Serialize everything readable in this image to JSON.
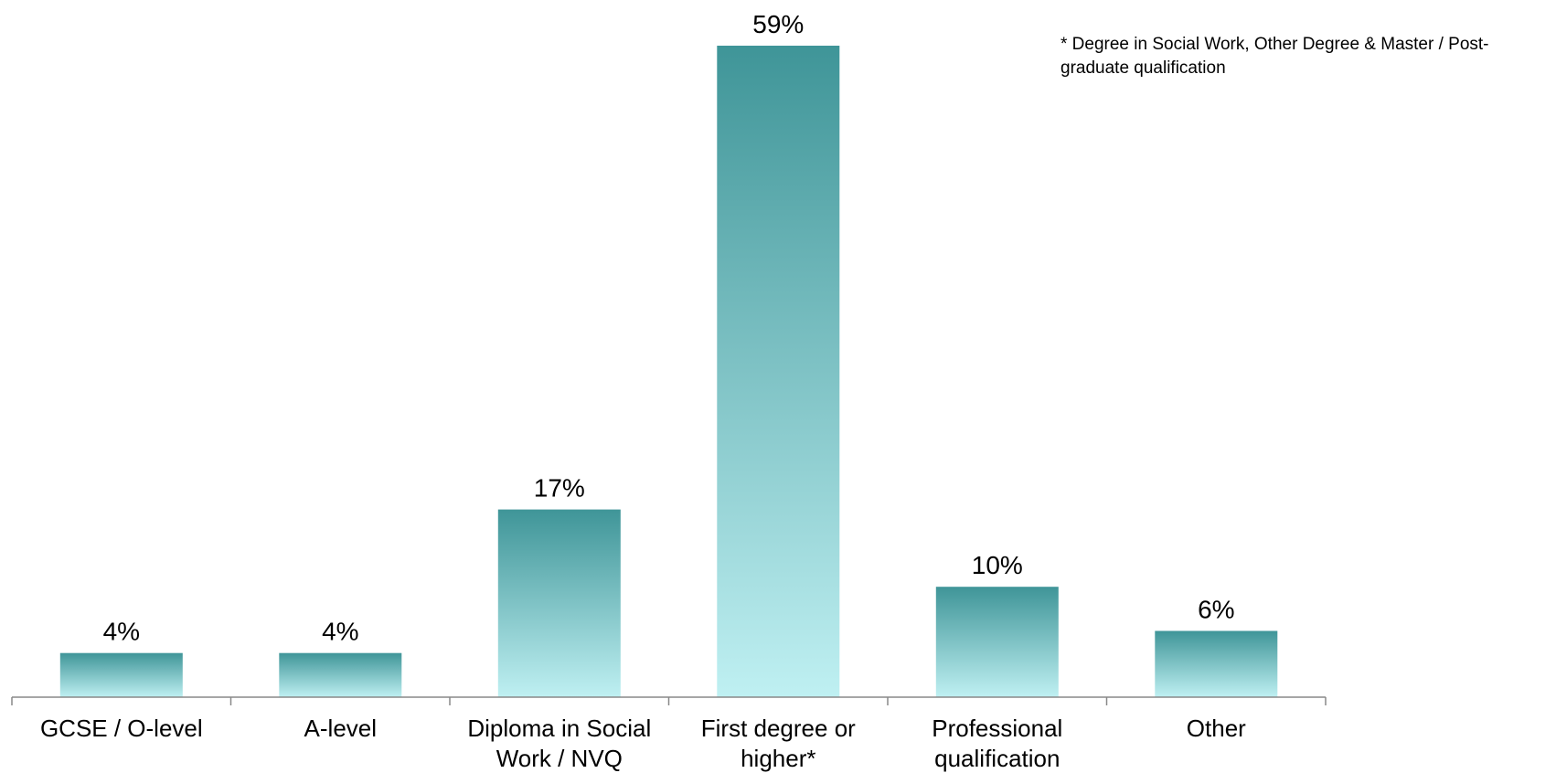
{
  "chart_data": {
    "type": "bar",
    "categories": [
      [
        "GCSE / O-level"
      ],
      [
        "A-level"
      ],
      [
        "Diploma in Social",
        "Work / NVQ"
      ],
      [
        "First degree or",
        "higher*"
      ],
      [
        "Professional",
        "qualification"
      ],
      [
        "Other"
      ]
    ],
    "values": [
      4,
      4,
      17,
      59,
      10,
      6
    ],
    "value_labels": [
      "4%",
      "4%",
      "17%",
      "59%",
      "10%",
      "6%"
    ],
    "ylim": [
      0,
      59
    ],
    "grid": false,
    "colors": {
      "bar_top": "#3f9598",
      "bar_bottom": "#bff0f2",
      "axis": "#888888"
    }
  },
  "footnote": "* Degree in Social Work, Other Degree & Master / Post-graduate qualification"
}
